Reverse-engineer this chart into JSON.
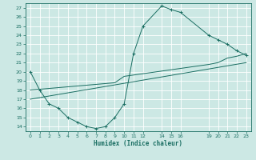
{
  "xlabel": "Humidex (Indice chaleur)",
  "bg_color": "#cce8e4",
  "grid_color": "#ffffff",
  "line_color": "#1a6e62",
  "xlim": [
    -0.5,
    23.5
  ],
  "ylim": [
    13.5,
    27.5
  ],
  "yticks": [
    14,
    15,
    16,
    17,
    18,
    19,
    20,
    21,
    22,
    23,
    24,
    25,
    26,
    27
  ],
  "xticks": [
    0,
    1,
    2,
    3,
    4,
    5,
    6,
    7,
    8,
    9,
    10,
    11,
    12,
    14,
    15,
    16,
    19,
    20,
    21,
    22,
    23
  ],
  "curve1_x": [
    0,
    1,
    2,
    3,
    4,
    5,
    6,
    7,
    8,
    9,
    10,
    11,
    12,
    14,
    15,
    16,
    19,
    20,
    21,
    22,
    23
  ],
  "curve1_y": [
    20,
    18,
    16.5,
    16,
    15,
    14.5,
    14,
    13.8,
    14,
    15,
    16.5,
    22,
    25,
    27.2,
    26.8,
    26.5,
    24,
    23.5,
    23,
    22.3,
    21.8
  ],
  "curve2_x": [
    0,
    9,
    10,
    19,
    20,
    21,
    22,
    23
  ],
  "curve2_y": [
    18,
    18.8,
    19.5,
    20.8,
    21,
    21.5,
    21.7,
    22
  ],
  "curve3_x": [
    0,
    23
  ],
  "curve3_y": [
    17,
    21
  ],
  "figsize": [
    3.2,
    2.0
  ],
  "dpi": 100
}
